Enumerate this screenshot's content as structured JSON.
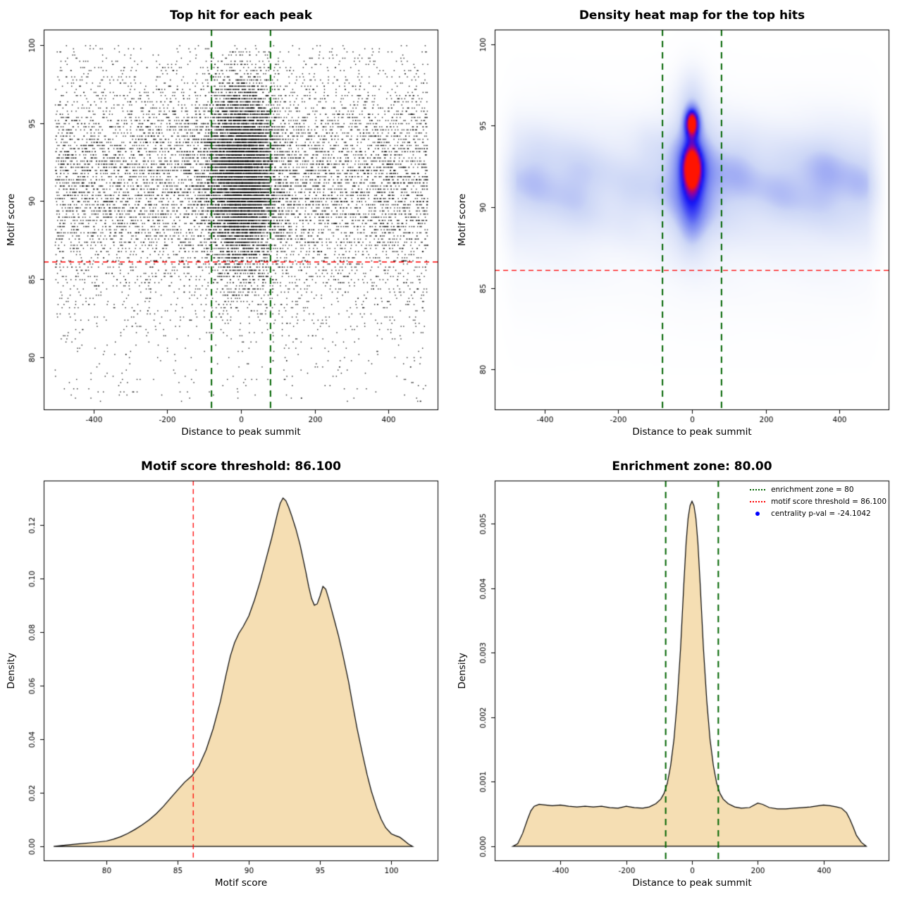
{
  "page": {
    "background": "#FFFFFF"
  },
  "chart_data": [
    {
      "type": "scatter",
      "title": "Top hit for each peak",
      "xlabel": "Distance to peak summit",
      "ylabel": "Motif score",
      "xlim": [
        -535,
        535
      ],
      "ylim": [
        76.6,
        101.0
      ],
      "xticks": [
        -400,
        -200,
        0,
        200,
        400
      ],
      "xtick_labels": [
        "-400",
        "-200",
        "0",
        "200",
        "400"
      ],
      "yticks": [
        80,
        85,
        90,
        95,
        100
      ],
      "ytick_labels": [
        "80",
        "85",
        "90",
        "95",
        "100"
      ],
      "point_color": "#000000",
      "hlines": [
        {
          "y": 86.1,
          "color": "#FF0000",
          "width": 1.3,
          "dash": [
            7,
            5
          ]
        }
      ],
      "vlines": [
        {
          "x": -80,
          "color": "#006400",
          "width": 2,
          "dash": [
            9,
            7
          ]
        },
        {
          "x": 80,
          "color": "#006400",
          "width": 2,
          "dash": [
            9,
            7
          ]
        }
      ],
      "scatter_model": {
        "seed": 42,
        "y_quantum": 0.2,
        "components": [
          {
            "n": 9000,
            "x": {
              "dist": "uniform",
              "min": -505,
              "max": 505
            },
            "y": {
              "dist": "normal",
              "mean": 91.4,
              "sd": 3.8,
              "min": 77.2,
              "max": 100.1
            }
          },
          {
            "n": 7000,
            "x": {
              "dist": "normal",
              "mean": 0,
              "sd": 48,
              "min": -520,
              "max": 520
            },
            "y": {
              "dist": "normal",
              "mean": 91.8,
              "sd": 3.1,
              "min": 79.0,
              "max": 100.1
            }
          },
          {
            "n": 450,
            "x": {
              "dist": "uniform",
              "min": -505,
              "max": 505
            },
            "y": {
              "dist": "uniform",
              "min": 77.2,
              "max": 86.0
            }
          }
        ]
      }
    },
    {
      "type": "heatmap",
      "title": "Density heat map for the top hits",
      "xlabel": "Distance to peak summit",
      "ylabel": "Motif score",
      "xlim": [
        -535,
        535
      ],
      "ylim": [
        77.5,
        100.9
      ],
      "xticks": [
        -400,
        -200,
        0,
        200,
        400
      ],
      "xtick_labels": [
        "-400",
        "-200",
        "0",
        "200",
        "400"
      ],
      "yticks": [
        80,
        85,
        90,
        95,
        100
      ],
      "ytick_labels": [
        "80",
        "85",
        "90",
        "95",
        "100"
      ],
      "hlines": [
        {
          "y": 86.1,
          "color": "#FF0000",
          "width": 1.3,
          "dash": [
            7,
            5
          ]
        }
      ],
      "vlines": [
        {
          "x": -80,
          "color": "#006400",
          "width": 2,
          "dash": [
            9,
            7
          ]
        },
        {
          "x": 80,
          "color": "#006400",
          "width": 2,
          "dash": [
            9,
            7
          ]
        }
      ],
      "heat_model": {
        "bands": [
          {
            "y": 91.6,
            "sy": 3.2,
            "amp": 0.3
          },
          {
            "y": 89.5,
            "sy": 5.5,
            "amp": 0.08
          }
        ],
        "spots": [
          {
            "x": -430,
            "y": 92.3,
            "sx": 50,
            "sy": 2.2,
            "amp": 0.1
          },
          {
            "x": -300,
            "y": 91.0,
            "sx": 60,
            "sy": 2.4,
            "amp": 0.1
          },
          {
            "x": -170,
            "y": 90.2,
            "sx": 45,
            "sy": 2.0,
            "amp": 0.09
          },
          {
            "x": -120,
            "y": 93.5,
            "sx": 40,
            "sy": 1.8,
            "amp": 0.08
          },
          {
            "x": 130,
            "y": 92.6,
            "sx": 50,
            "sy": 2.2,
            "amp": 0.1
          },
          {
            "x": 240,
            "y": 90.8,
            "sx": 55,
            "sy": 2.0,
            "amp": 0.08
          },
          {
            "x": 360,
            "y": 92.0,
            "sx": 55,
            "sy": 2.3,
            "amp": 0.09
          },
          {
            "x": 460,
            "y": 91.2,
            "sx": 40,
            "sy": 2.0,
            "amp": 0.08
          }
        ],
        "center": [
          {
            "x": 0,
            "y": 92.2,
            "sx": 58,
            "sy": 4.0,
            "amp": 0.35
          },
          {
            "x": 0,
            "y": 92.3,
            "sx": 32,
            "sy": 2.4,
            "amp": 0.18
          },
          {
            "x": 0,
            "y": 92.4,
            "sx": 23,
            "sy": 1.3,
            "amp": 0.45
          },
          {
            "x": 0,
            "y": 95.2,
            "sx": 20,
            "sy": 0.9,
            "amp": 0.75
          },
          {
            "x": 0,
            "y": 96.9,
            "sx": 36,
            "sy": 1.7,
            "amp": 0.13
          },
          {
            "x": 0,
            "y": 88.7,
            "sx": 34,
            "sy": 1.6,
            "amp": 0.14
          }
        ],
        "color_stops": [
          0,
          0.3,
          0.55,
          0.76,
          0.88,
          1
        ],
        "colors": [
          "#FFFFFF",
          "#CDD7F6",
          "#7583F2",
          "#1414F5",
          "#9400A0",
          "#FF1400"
        ]
      }
    },
    {
      "type": "area",
      "title": "Motif score threshold: 86.100",
      "xlabel": "Motif score",
      "ylabel": "Density",
      "xlim": [
        75.6,
        103.3
      ],
      "ylim": [
        -0.0055,
        0.1365
      ],
      "xticks": [
        80,
        85,
        90,
        95,
        100
      ],
      "xtick_labels": [
        "80",
        "85",
        "90",
        "95",
        "100"
      ],
      "yticks": [
        0,
        0.02,
        0.04,
        0.06,
        0.08,
        0.1,
        0.12
      ],
      "ytick_labels": [
        "0.00",
        "0.02",
        "0.04",
        "0.06",
        "0.08",
        "0.10",
        "0.12"
      ],
      "fill": "#F5DEB3",
      "stroke": "#000000",
      "vlines": [
        {
          "x": 86.1,
          "color": "#FF0000",
          "width": 1.3,
          "dash": [
            7,
            5
          ]
        }
      ],
      "curve": {
        "points": [
          [
            76.3,
            0
          ],
          [
            77,
            0.0004
          ],
          [
            78,
            0.0009
          ],
          [
            79,
            0.0014
          ],
          [
            80,
            0.002
          ],
          [
            80.5,
            0.0027
          ],
          [
            81,
            0.0036
          ],
          [
            81.5,
            0.0048
          ],
          [
            82,
            0.0063
          ],
          [
            82.5,
            0.008
          ],
          [
            83,
            0.0099
          ],
          [
            83.5,
            0.0122
          ],
          [
            84,
            0.0149
          ],
          [
            84.5,
            0.018
          ],
          [
            85,
            0.021
          ],
          [
            85.5,
            0.024
          ],
          [
            86,
            0.0263
          ],
          [
            86.5,
            0.03
          ],
          [
            87,
            0.036
          ],
          [
            87.5,
            0.044
          ],
          [
            88,
            0.054
          ],
          [
            88.4,
            0.064
          ],
          [
            88.7,
            0.071
          ],
          [
            89,
            0.076
          ],
          [
            89.3,
            0.0795
          ],
          [
            89.6,
            0.082
          ],
          [
            90,
            0.086
          ],
          [
            90.4,
            0.092
          ],
          [
            90.8,
            0.099
          ],
          [
            91.2,
            0.107
          ],
          [
            91.6,
            0.115
          ],
          [
            92,
            0.124
          ],
          [
            92.2,
            0.128
          ],
          [
            92.4,
            0.13
          ],
          [
            92.6,
            0.129
          ],
          [
            92.8,
            0.1265
          ],
          [
            93,
            0.1235
          ],
          [
            93.3,
            0.1185
          ],
          [
            93.6,
            0.1125
          ],
          [
            94,
            0.1025
          ],
          [
            94.2,
            0.097
          ],
          [
            94.4,
            0.0925
          ],
          [
            94.6,
            0.09
          ],
          [
            94.8,
            0.0905
          ],
          [
            95,
            0.0935
          ],
          [
            95.2,
            0.097
          ],
          [
            95.4,
            0.096
          ],
          [
            95.6,
            0.0925
          ],
          [
            95.8,
            0.0885
          ],
          [
            96,
            0.0845
          ],
          [
            96.3,
            0.0785
          ],
          [
            96.6,
            0.0715
          ],
          [
            97,
            0.0615
          ],
          [
            97.3,
            0.0525
          ],
          [
            97.6,
            0.044
          ],
          [
            98,
            0.034
          ],
          [
            98.3,
            0.0268
          ],
          [
            98.6,
            0.0206
          ],
          [
            99,
            0.014
          ],
          [
            99.3,
            0.01
          ],
          [
            99.6,
            0.007
          ],
          [
            100,
            0.0047
          ],
          [
            100.3,
            0.004
          ],
          [
            100.6,
            0.0034
          ],
          [
            100.9,
            0.0022
          ],
          [
            101.2,
            0.0009
          ],
          [
            101.5,
            0
          ]
        ]
      }
    },
    {
      "type": "area",
      "title": "Enrichment zone: 80.00",
      "xlabel": "Distance to peak summit",
      "ylabel": "Density",
      "xlim": [
        -600,
        600
      ],
      "ylim": [
        -0.00023,
        0.00567
      ],
      "xticks": [
        -400,
        -200,
        0,
        200,
        400
      ],
      "xtick_labels": [
        "-400",
        "-200",
        "0",
        "200",
        "400"
      ],
      "yticks": [
        0,
        0.001,
        0.002,
        0.003,
        0.004,
        0.005
      ],
      "ytick_labels": [
        "0.000",
        "0.001",
        "0.002",
        "0.003",
        "0.004",
        "0.005"
      ],
      "fill": "#F5DEB3",
      "stroke": "#000000",
      "vlines": [
        {
          "x": -80,
          "color": "#006400",
          "width": 2,
          "dash": [
            9,
            7
          ]
        },
        {
          "x": 80,
          "color": "#006400",
          "width": 2,
          "dash": [
            9,
            7
          ]
        }
      ],
      "curve": {
        "points": [
          [
            -545,
            0
          ],
          [
            -530,
            4e-05
          ],
          [
            -515,
            0.0002
          ],
          [
            -500,
            0.00042
          ],
          [
            -490,
            0.00055
          ],
          [
            -480,
            0.00062
          ],
          [
            -465,
            0.00065
          ],
          [
            -445,
            0.00064
          ],
          [
            -425,
            0.00063
          ],
          [
            -400,
            0.00064
          ],
          [
            -375,
            0.00062
          ],
          [
            -350,
            0.00061
          ],
          [
            -325,
            0.00062
          ],
          [
            -300,
            0.00061
          ],
          [
            -275,
            0.00062
          ],
          [
            -250,
            0.0006
          ],
          [
            -225,
            0.00059
          ],
          [
            -200,
            0.00062
          ],
          [
            -175,
            0.0006
          ],
          [
            -150,
            0.00059
          ],
          [
            -130,
            0.00061
          ],
          [
            -110,
            0.00066
          ],
          [
            -95,
            0.00073
          ],
          [
            -85,
            0.00082
          ],
          [
            -75,
            0.00098
          ],
          [
            -65,
            0.00125
          ],
          [
            -55,
            0.00165
          ],
          [
            -45,
            0.00225
          ],
          [
            -35,
            0.00305
          ],
          [
            -25,
            0.00405
          ],
          [
            -18,
            0.0047
          ],
          [
            -12,
            0.00508
          ],
          [
            -6,
            0.00528
          ],
          [
            0,
            0.00535
          ],
          [
            6,
            0.00528
          ],
          [
            12,
            0.00508
          ],
          [
            18,
            0.0047
          ],
          [
            25,
            0.00405
          ],
          [
            35,
            0.00305
          ],
          [
            45,
            0.00225
          ],
          [
            55,
            0.00165
          ],
          [
            65,
            0.00125
          ],
          [
            75,
            0.00098
          ],
          [
            85,
            0.00082
          ],
          [
            95,
            0.00073
          ],
          [
            110,
            0.00066
          ],
          [
            130,
            0.00061
          ],
          [
            150,
            0.00059
          ],
          [
            175,
            0.0006
          ],
          [
            200,
            0.00067
          ],
          [
            215,
            0.00065
          ],
          [
            235,
            0.0006
          ],
          [
            260,
            0.00058
          ],
          [
            285,
            0.00058
          ],
          [
            310,
            0.00059
          ],
          [
            335,
            0.0006
          ],
          [
            360,
            0.00061
          ],
          [
            385,
            0.00063
          ],
          [
            400,
            0.00064
          ],
          [
            420,
            0.00063
          ],
          [
            440,
            0.00061
          ],
          [
            455,
            0.00059
          ],
          [
            470,
            0.00052
          ],
          [
            480,
            0.00042
          ],
          [
            490,
            0.0003
          ],
          [
            500,
            0.00017
          ],
          [
            515,
            6e-05
          ],
          [
            530,
            0
          ]
        ]
      },
      "legend": {
        "items": [
          {
            "label": "enrichment zone = 80",
            "marker": "dotted-line",
            "color": "#006400"
          },
          {
            "label": "motif score threshold = 86.100",
            "marker": "dotted-line",
            "color": "#FF0000"
          },
          {
            "label": "centrality p-val = -24.1042",
            "marker": "point",
            "color": "#0000FF"
          }
        ]
      }
    }
  ]
}
